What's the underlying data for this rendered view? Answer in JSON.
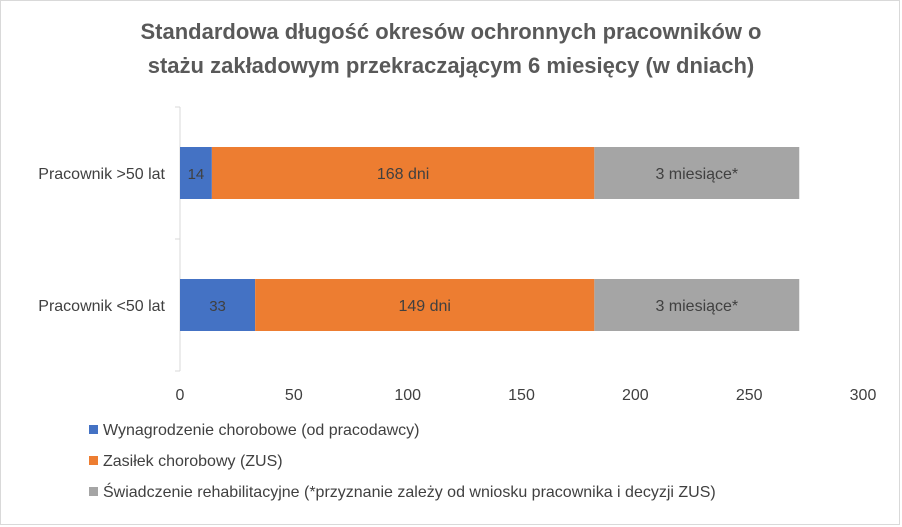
{
  "chart_data": {
    "type": "bar",
    "orientation": "horizontal",
    "stacked": true,
    "title_lines": [
      "Standardowa długość okresów ochronnych pracowników o",
      "stażu zakładowym przekraczającym 6 miesięcy (w dniach)"
    ],
    "categories": [
      "Pracownik >50 lat",
      "Pracownik <50 lat"
    ],
    "series": [
      {
        "name": "Wynagrodzenie chorobowe (od pracodawcy)",
        "color": "#4472c4",
        "values": [
          14,
          33
        ],
        "labels": [
          "14",
          "33"
        ]
      },
      {
        "name": "Zasiłek chorobowy (ZUS)",
        "color": "#ed7d31",
        "values": [
          168,
          149
        ],
        "labels": [
          "168 dni",
          "149 dni"
        ]
      },
      {
        "name": "Świadczenie rehabilitacyjne (*przyznanie zależy od wniosku pracownika i decyzji ZUS)",
        "color": "#a5a5a5",
        "values": [
          90,
          90
        ],
        "labels": [
          "3 miesiące*",
          "3 miesiące*"
        ]
      }
    ],
    "xlim": [
      0,
      300
    ],
    "xticks": [
      0,
      50,
      100,
      150,
      200,
      250,
      300
    ],
    "grid": false,
    "legend_position": "bottom"
  }
}
